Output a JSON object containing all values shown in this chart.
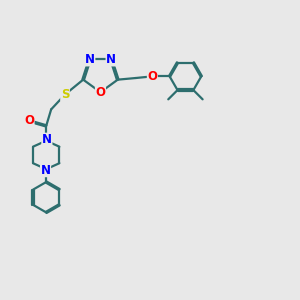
{
  "bg_color": "#e8e8e8",
  "bond_color": "#2d6e6e",
  "N_color": "#0000ff",
  "O_color": "#ff0000",
  "S_color": "#cccc00",
  "line_width": 1.6,
  "font_size": 8.5,
  "xlim": [
    0.5,
    9.5
  ],
  "ylim": [
    0.5,
    9.5
  ]
}
